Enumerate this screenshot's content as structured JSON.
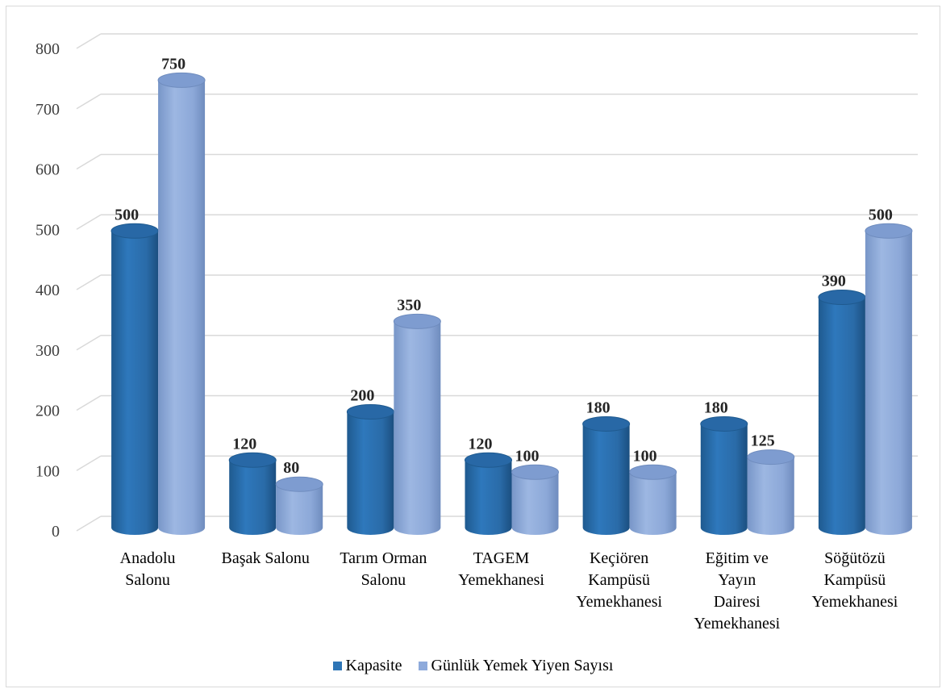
{
  "chart_data": {
    "type": "bar",
    "title": "",
    "xlabel": "",
    "ylabel": "",
    "ylim": [
      0,
      800
    ],
    "yticks": [
      "0",
      "100",
      "200",
      "300",
      "400",
      "500",
      "600",
      "700",
      "800"
    ],
    "grid": true,
    "legend_position": "bottom",
    "categories": [
      [
        "Anadolu",
        "Salonu"
      ],
      [
        "Başak Salonu"
      ],
      [
        "Tarım Orman",
        "Salonu"
      ],
      [
        "TAGEM",
        "Yemekhanesi"
      ],
      [
        "Keçiören",
        "Kampüsü",
        "Yemekhanesi"
      ],
      [
        "Eğitim ve",
        "Yayın",
        "Dairesi",
        "Yemekhanesi"
      ],
      [
        "Söğütözü",
        "Kampüsü",
        "Yemekhanesi"
      ]
    ],
    "series": [
      {
        "name": "Kapasite",
        "color": "#2E75B6",
        "values": [
          500,
          120,
          200,
          120,
          180,
          180,
          390
        ]
      },
      {
        "name": "Günlük Yemek Yiyen Sayısı",
        "color": "#8EAADB",
        "values": [
          750,
          80,
          350,
          100,
          100,
          125,
          500
        ]
      }
    ]
  }
}
